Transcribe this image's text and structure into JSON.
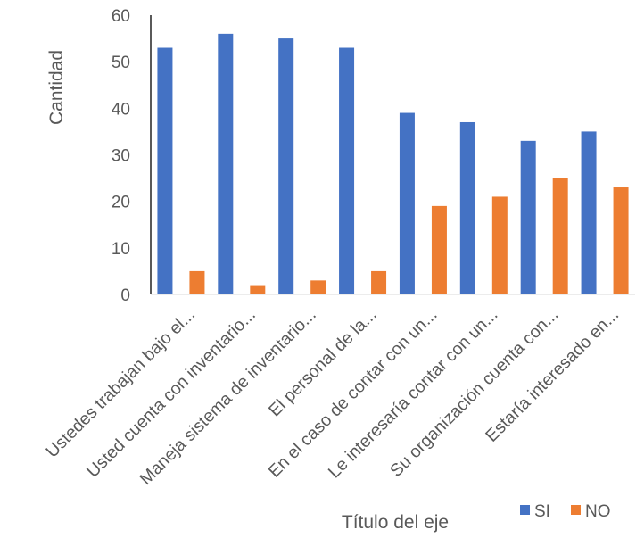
{
  "chart_data": {
    "type": "bar",
    "title": "",
    "xlabel": "Título del eje",
    "ylabel": "Cantidad",
    "ylim": [
      0,
      60
    ],
    "yticks": [
      0,
      10,
      20,
      30,
      40,
      50,
      60
    ],
    "grid": false,
    "legend_position": "bottom-right",
    "categories": [
      "Ustedes trabajan bajo el...",
      "Usted cuenta con inventario...",
      "Maneja sistema de inventario...",
      "El personal de la...",
      "En el caso de contar con un...",
      "Le interesaría contar con un...",
      "Su organización cuenta con...",
      "Estaría interesado en..."
    ],
    "series": [
      {
        "name": "SI",
        "color": "#4472C4",
        "values": [
          53,
          56,
          55,
          53,
          39,
          37,
          33,
          35
        ]
      },
      {
        "name": "NO",
        "color": "#ED7D31",
        "values": [
          5,
          2,
          3,
          5,
          19,
          21,
          25,
          23
        ]
      }
    ]
  }
}
